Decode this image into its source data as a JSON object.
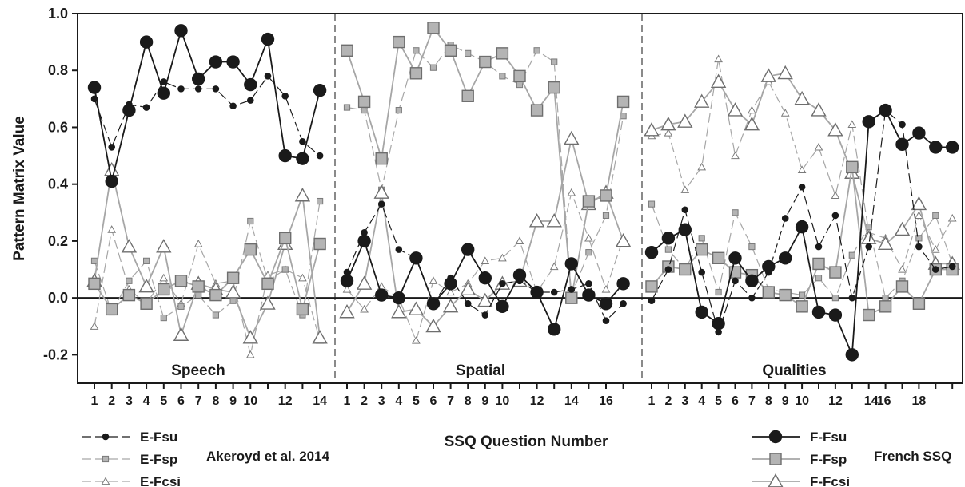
{
  "chart_data": {
    "type": "line",
    "ylabel": "Pattern Matrix Value",
    "xlabel": "SSQ Question Number",
    "ylim": [
      -0.3,
      1.0
    ],
    "yticks": [
      "1.0",
      "0.8",
      "0.6",
      "0.4",
      "0.2",
      "0.0",
      "-0.2"
    ],
    "grid": false,
    "zero_line": true,
    "panels": [
      {
        "name": "Speech",
        "n_questions": 14,
        "tick_labels": [
          "1",
          "2",
          "3",
          "4",
          "5",
          "6",
          "7",
          "8",
          "9",
          "10",
          "",
          "12",
          "",
          "14"
        ],
        "series": {
          "E-Fsu": [
            0.7,
            0.53,
            0.68,
            0.67,
            0.76,
            0.735,
            0.735,
            0.735,
            0.675,
            0.695,
            0.78,
            0.71,
            0.55,
            0.5
          ],
          "E-Fsp": [
            0.13,
            -0.05,
            0.06,
            0.13,
            -0.07,
            -0.03,
            0.01,
            -0.06,
            -0.01,
            0.27,
            0.06,
            0.1,
            -0.06,
            0.34
          ],
          "E-Fcsi": [
            -0.1,
            0.24,
            0.03,
            -0.02,
            0.07,
            -0.02,
            0.19,
            0.05,
            0.06,
            -0.2,
            0.08,
            0.1,
            0.07,
            -0.15
          ],
          "F-Fsu": [
            0.74,
            0.41,
            0.66,
            0.9,
            0.72,
            0.94,
            0.77,
            0.83,
            0.83,
            0.75,
            0.91,
            0.5,
            0.49,
            0.73
          ],
          "F-Fsp": [
            0.05,
            -0.04,
            0.01,
            -0.02,
            0.03,
            0.06,
            0.04,
            0.01,
            0.07,
            0.17,
            0.05,
            0.21,
            -0.04,
            0.19
          ],
          "F-Fcsi": [
            0.06,
            0.45,
            0.18,
            0.04,
            0.18,
            -0.13,
            0.05,
            0.03,
            0.02,
            -0.14,
            -0.02,
            0.19,
            0.36,
            -0.14
          ]
        }
      },
      {
        "name": "Spatial",
        "n_questions": 17,
        "tick_labels": [
          "1",
          "2",
          "3",
          "4",
          "5",
          "6",
          "7",
          "8",
          "9",
          "10",
          "",
          "12",
          "",
          "14",
          "",
          "16",
          ""
        ],
        "series": {
          "E-Fsu": [
            0.09,
            0.23,
            0.33,
            0.17,
            0.14,
            -0.02,
            0.07,
            -0.02,
            -0.06,
            0.05,
            0.06,
            0.02,
            0.02,
            0.03,
            0.05,
            -0.08,
            -0.02
          ],
          "E-Fsp": [
            0.67,
            0.66,
            0.38,
            0.66,
            0.87,
            0.81,
            0.89,
            0.86,
            0.83,
            0.78,
            0.75,
            0.87,
            0.83,
            0.01,
            0.16,
            0.29,
            0.64
          ],
          "E-Fcsi": [
            0.03,
            -0.04,
            0.04,
            0.0,
            -0.15,
            0.06,
            0.02,
            0.05,
            0.13,
            0.14,
            0.2,
            0.02,
            0.11,
            0.37,
            0.21,
            0.03,
            0.21
          ],
          "F-Fsu": [
            0.06,
            0.2,
            0.01,
            0.0,
            0.14,
            -0.02,
            0.05,
            0.17,
            0.07,
            -0.03,
            0.08,
            0.02,
            -0.11,
            0.12,
            0.01,
            -0.02,
            0.05
          ],
          "F-Fsp": [
            0.87,
            0.69,
            0.49,
            0.9,
            0.79,
            0.95,
            0.87,
            0.71,
            0.83,
            0.86,
            0.78,
            0.66,
            0.74,
            0.0,
            0.34,
            0.36,
            0.69
          ],
          "F-Fcsi": [
            -0.05,
            0.05,
            0.37,
            -0.05,
            -0.04,
            -0.1,
            -0.03,
            0.03,
            -0.01,
            0.05,
            0.06,
            0.27,
            0.27,
            0.56,
            0.33,
            0.37,
            0.2
          ]
        }
      },
      {
        "name": "Qualities",
        "n_questions": 19,
        "tick_labels": [
          "1",
          "2",
          "3",
          "4",
          "5",
          "6",
          "7",
          "8",
          "9",
          "10",
          "",
          "12",
          "",
          "14",
          "16",
          "",
          "18",
          "",
          ""
        ],
        "series": {
          "E-Fsu": [
            -0.01,
            0.1,
            0.31,
            0.09,
            -0.12,
            0.06,
            0.0,
            0.09,
            0.28,
            0.39,
            0.18,
            0.29,
            0.0,
            0.18,
            0.66,
            0.61,
            0.18,
            0.1,
            0.11
          ],
          "E-Fsp": [
            0.33,
            0.17,
            0.1,
            0.21,
            0.02,
            0.3,
            0.18,
            0.03,
            0.02,
            0.01,
            0.07,
            0.0,
            0.15,
            0.25,
            0.0,
            0.06,
            0.21,
            0.29,
            0.12
          ],
          "E-Fcsi": [
            0.57,
            0.58,
            0.38,
            0.46,
            0.84,
            0.5,
            0.66,
            0.76,
            0.65,
            0.45,
            0.53,
            0.36,
            0.61,
            0.23,
            0.21,
            0.1,
            0.29,
            0.17,
            0.28
          ],
          "F-Fsu": [
            0.16,
            0.21,
            0.24,
            -0.05,
            -0.09,
            0.14,
            0.06,
            0.11,
            0.14,
            0.25,
            -0.05,
            -0.06,
            -0.2,
            0.62,
            0.66,
            0.54,
            0.58,
            0.53,
            0.53
          ],
          "F-Fsp": [
            0.04,
            0.11,
            0.1,
            0.17,
            0.14,
            0.09,
            0.08,
            0.02,
            0.01,
            -0.03,
            0.12,
            0.09,
            0.46,
            -0.06,
            -0.03,
            0.04,
            -0.02,
            0.1,
            0.1
          ],
          "F-Fcsi": [
            0.59,
            0.61,
            0.62,
            0.69,
            0.76,
            0.66,
            0.61,
            0.78,
            0.79,
            0.7,
            0.66,
            0.59,
            0.44,
            0.21,
            0.19,
            0.24,
            0.33,
            0.12,
            0.12
          ]
        }
      }
    ],
    "series_styles": {
      "E-Fsu": {
        "color": "#1a1a1a",
        "marker": "circle",
        "filled": true,
        "size": "small",
        "dash": true
      },
      "E-Fsp": {
        "color": "#a6a6a6",
        "marker": "square",
        "filled": true,
        "size": "small",
        "dash": true
      },
      "E-Fcsi": {
        "color": "#a6a6a6",
        "marker": "triangle",
        "filled": false,
        "size": "small",
        "dash": true
      },
      "F-Fsu": {
        "color": "#1a1a1a",
        "marker": "circle",
        "filled": true,
        "size": "large",
        "dash": false
      },
      "F-Fsp": {
        "color": "#a6a6a6",
        "marker": "square",
        "filled": true,
        "size": "large",
        "dash": false
      },
      "F-Fcsi": {
        "color": "#a6a6a6",
        "marker": "triangle",
        "filled": false,
        "size": "large",
        "dash": false
      }
    },
    "legend_left": {
      "entries": [
        "E-Fsu",
        "E-Fsp",
        "E-Fcsi"
      ],
      "caption": "Akeroyd et al. 2014"
    },
    "legend_right": {
      "entries": [
        "F-Fsu",
        "F-Fsp",
        "F-Fcsi"
      ],
      "caption": "French SSQ"
    }
  }
}
